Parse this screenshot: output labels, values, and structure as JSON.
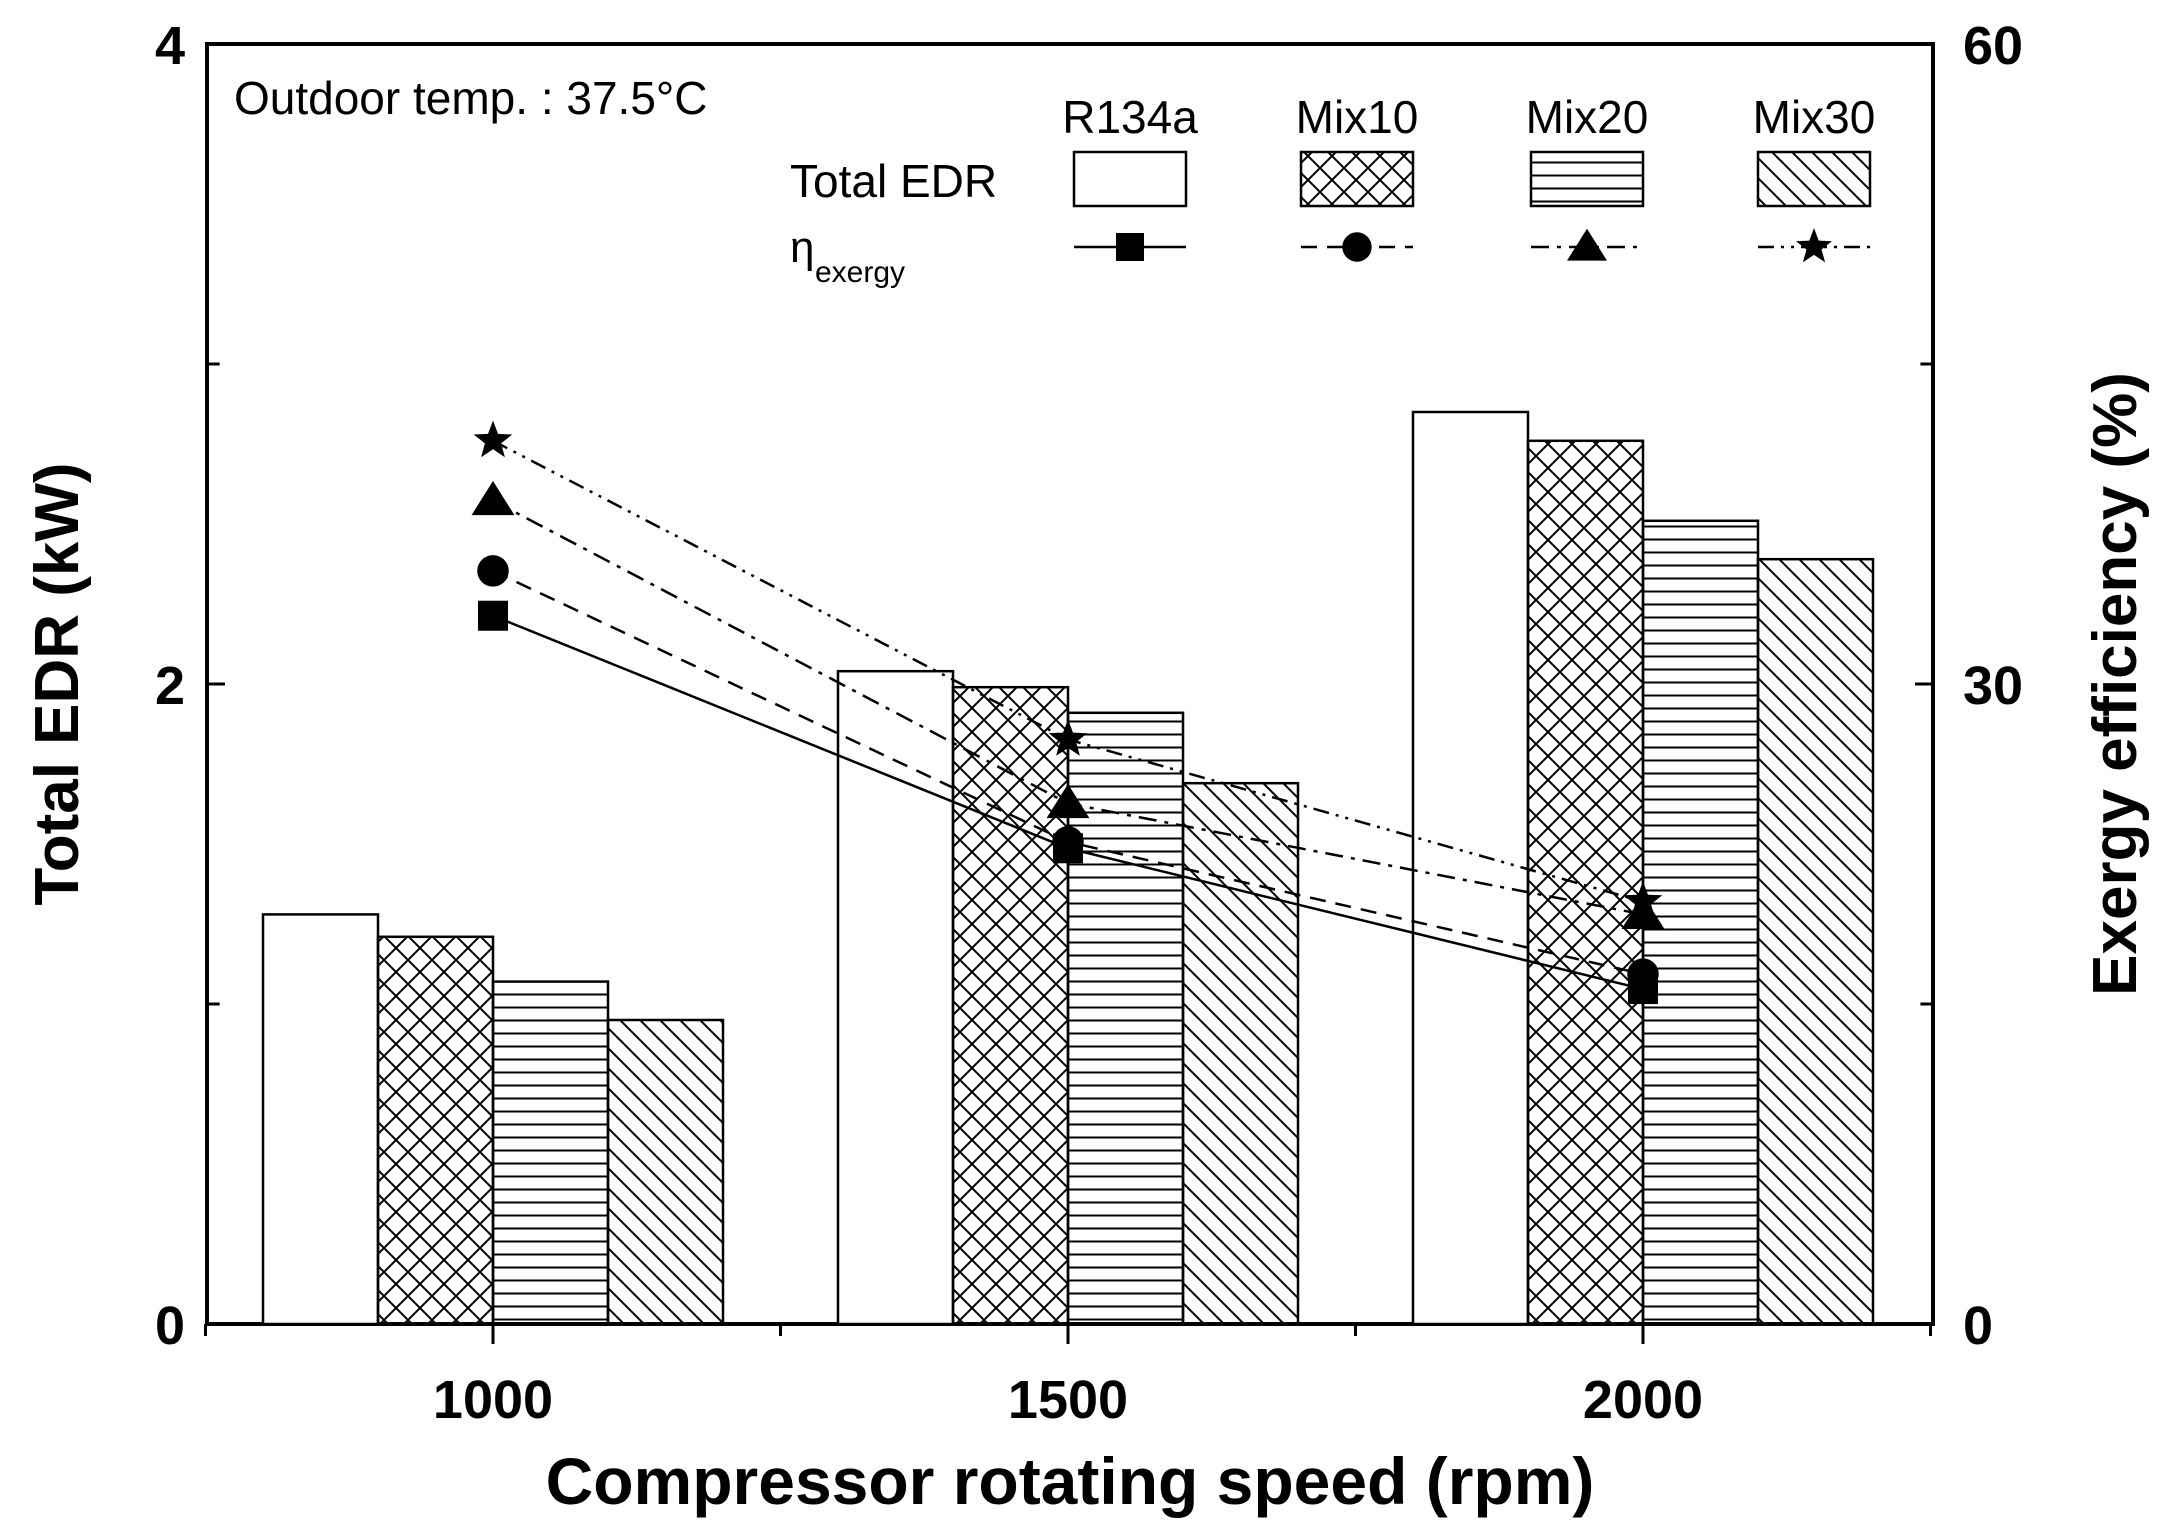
{
  "chart_data": {
    "type": "bar",
    "annotation": "Outdoor temp. : 37.5°C",
    "xlabel": "Compressor rotating speed (rpm)",
    "ylabel": "Total EDR (kW)",
    "y2label": "Exergy efficiency (%)",
    "categories": [
      "1000",
      "1500",
      "2000"
    ],
    "ylim": [
      0,
      4
    ],
    "y2lim": [
      0,
      60
    ],
    "yticks": [
      "0",
      "2",
      "4"
    ],
    "y2ticks": [
      "0",
      "30",
      "60"
    ],
    "legend": {
      "row_bar_label": "Total EDR",
      "row_line_label_main": "η",
      "row_line_label_sub": "exergy",
      "placement": "top-right"
    },
    "bar_series": [
      {
        "name": "R134a",
        "values": [
          1.28,
          2.04,
          2.85
        ],
        "pattern": "none"
      },
      {
        "name": "Mix10",
        "values": [
          1.21,
          1.99,
          2.76
        ],
        "pattern": "crosshatch"
      },
      {
        "name": "Mix20",
        "values": [
          1.07,
          1.91,
          2.51
        ],
        "pattern": "horizontal"
      },
      {
        "name": "Mix30",
        "values": [
          0.95,
          1.69,
          2.39
        ],
        "pattern": "diagonal"
      }
    ],
    "line_series": [
      {
        "name": "R134a",
        "values": [
          33.2,
          22.3,
          15.7
        ],
        "marker": "square",
        "dash": "solid"
      },
      {
        "name": "Mix10",
        "values": [
          35.3,
          22.6,
          16.4
        ],
        "marker": "circle",
        "dash": "dashed"
      },
      {
        "name": "Mix20",
        "values": [
          38.6,
          24.4,
          19.2
        ],
        "marker": "triangle",
        "dash": "dashdot"
      },
      {
        "name": "Mix30",
        "values": [
          41.4,
          27.4,
          19.8
        ],
        "marker": "star",
        "dash": "dashdotdot"
      }
    ]
  }
}
